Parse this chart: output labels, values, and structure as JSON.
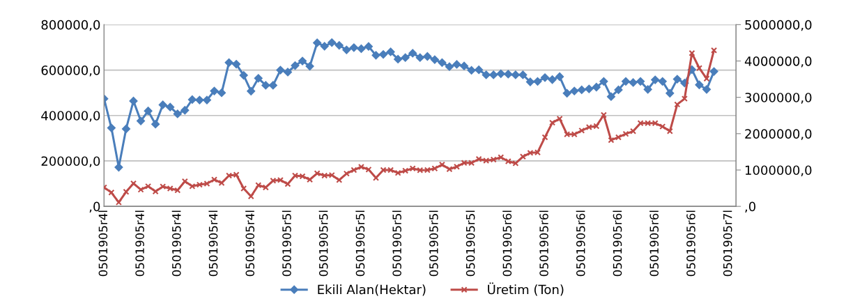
{
  "chart_data": {
    "type": "line",
    "categories": [
      "0501905r4l",
      null,
      null,
      null,
      null,
      "0501905r4l",
      null,
      null,
      null,
      null,
      "0501905r4l",
      null,
      null,
      null,
      null,
      "0501905r4l",
      null,
      null,
      null,
      null,
      "0501905r4l",
      null,
      null,
      null,
      null,
      "0501905r5l",
      null,
      null,
      null,
      null,
      "0501905r5l",
      null,
      null,
      null,
      null,
      "0501905r5l",
      null,
      null,
      null,
      null,
      "0501905r5l",
      null,
      null,
      null,
      null,
      "0501905r5l",
      null,
      null,
      null,
      null,
      "0501905r5l",
      null,
      null,
      null,
      null,
      "0501905r6l",
      null,
      null,
      null,
      null,
      "0501905r6l",
      null,
      null,
      null,
      null,
      "0501905r6l",
      null,
      null,
      null,
      null,
      "0501905r6l",
      null,
      null,
      null,
      null,
      "0501905r6l",
      null,
      null,
      null,
      null,
      "0501905r6l",
      null,
      null,
      null,
      null,
      "0501905r7l"
    ],
    "series": [
      {
        "name": "Ekili Alan(Hektar)",
        "color": "#4a7ebb",
        "marker": "diamond",
        "values": [
          474000,
          345500,
          172000,
          341000,
          464000,
          376000,
          420000,
          362000,
          447000,
          437000,
          407000,
          423000,
          470000,
          468000,
          468000,
          508000,
          500000,
          633000,
          626000,
          577000,
          507000,
          564000,
          533000,
          533000,
          600000,
          591000,
          620000,
          640000,
          617000,
          720000,
          705000,
          721000,
          709000,
          689000,
          699000,
          694000,
          704000,
          665000,
          669000,
          680000,
          648000,
          655000,
          674000,
          655000,
          660000,
          646000,
          633000,
          615000,
          625000,
          618000,
          599000,
          601000,
          579000,
          579000,
          584000,
          582000,
          579000,
          579000,
          548000,
          550000,
          567000,
          558000,
          571000,
          498000,
          508000,
          513000,
          517000,
          525000,
          550000,
          483000,
          513000,
          550000,
          545000,
          550000,
          515000,
          557000,
          550000,
          498000,
          560000,
          543000,
          602000,
          535000,
          515000,
          594000,
          null,
          null
        ]
      },
      {
        "name": "Üretim (Ton)",
        "color": "#be4b48",
        "marker": "cross",
        "axis": "y2",
        "values": [
          521000,
          380000,
          110000,
          399000,
          632000,
          460000,
          552000,
          411000,
          546000,
          491000,
          442000,
          687000,
          552000,
          595000,
          626000,
          736000,
          644000,
          847000,
          871000,
          491000,
          276000,
          583000,
          521000,
          706000,
          724000,
          614000,
          847000,
          828000,
          736000,
          908000,
          847000,
          859000,
          724000,
          902000,
          1000000,
          1086000,
          1012000,
          785000,
          1000000,
          1000000,
          920000,
          982000,
          1043000,
          994000,
          1000000,
          1043000,
          1147000,
          1025000,
          1092000,
          1196000,
          1196000,
          1301000,
          1258000,
          1288000,
          1350000,
          1239000,
          1184000,
          1368000,
          1472000,
          1485000,
          1902000,
          2301000,
          2411000,
          1982000,
          1982000,
          2086000,
          2178000,
          2209000,
          2515000,
          1822000,
          1902000,
          1994000,
          2067000,
          2288000,
          2288000,
          2288000,
          2196000,
          2067000,
          2804000,
          2963000,
          4215000,
          3804000,
          3515000,
          4294000,
          null,
          null
        ]
      }
    ],
    "ylim": [
      0,
      800000
    ],
    "yticks": [
      {
        "value": 0,
        "label": ",0"
      },
      {
        "value": 200000,
        "label": "200000,0"
      },
      {
        "value": 400000,
        "label": "400000,0"
      },
      {
        "value": 600000,
        "label": "600000,0"
      },
      {
        "value": 800000,
        "label": "800000,0"
      }
    ],
    "y2lim": [
      0,
      5000000
    ],
    "y2ticks": [
      {
        "value": 0,
        "label": ",0"
      },
      {
        "value": 1000000,
        "label": "1000000,0"
      },
      {
        "value": 2000000,
        "label": "2000000,0"
      },
      {
        "value": 3000000,
        "label": "3000000,0"
      },
      {
        "value": 4000000,
        "label": "4000000,0"
      },
      {
        "value": 5000000,
        "label": "5000000,0"
      }
    ],
    "grid": "y",
    "legend": "bottom",
    "line_style": "solid"
  }
}
